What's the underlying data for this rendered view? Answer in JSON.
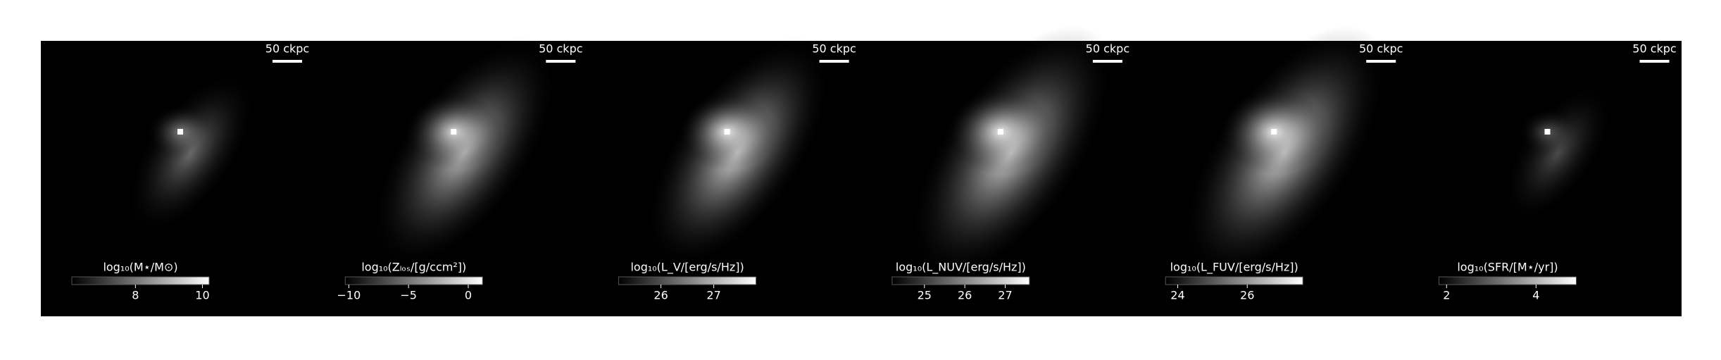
{
  "chart_data": [
    {
      "type": "heatmap",
      "scale_bar_label": "50 ckpc",
      "colorbar": {
        "label": "log₁₀(M⋆/M⊙)",
        "lim": [
          6.1,
          10.2
        ],
        "ticks": [
          8,
          10
        ]
      }
    },
    {
      "type": "heatmap",
      "scale_bar_label": "50 ckpc",
      "colorbar": {
        "label": "log₁₀(Zₗₒₛ/[g/ccm²])",
        "lim": [
          -10.3,
          1.2
        ],
        "ticks": [
          {
            "value": -10,
            "label": "−10"
          },
          {
            "value": -5,
            "label": "−5"
          },
          0
        ]
      }
    },
    {
      "type": "heatmap",
      "scale_bar_label": "50 ckpc",
      "colorbar": {
        "label": "log₁₀(L_V/[erg/s/Hz])",
        "lim": [
          25.2,
          27.8
        ],
        "ticks": [
          26,
          27
        ]
      }
    },
    {
      "type": "heatmap",
      "scale_bar_label": "50 ckpc",
      "colorbar": {
        "label": "log₁₀(L_NUV/[erg/s/Hz])",
        "lim": [
          24.2,
          27.6
        ],
        "ticks": [
          25,
          26,
          27
        ]
      }
    },
    {
      "type": "heatmap",
      "scale_bar_label": "50 ckpc",
      "colorbar": {
        "label": "log₁₀(L_FUV/[erg/s/Hz])",
        "lim": [
          23.65,
          27.6
        ],
        "ticks": [
          24,
          26
        ]
      }
    },
    {
      "type": "heatmap",
      "scale_bar_label": "50 ckpc",
      "colorbar": {
        "label": "log₁₀(SFR/[M⋆/yr])",
        "lim": [
          1.83,
          4.9
        ],
        "ticks": [
          2,
          4
        ]
      }
    }
  ]
}
